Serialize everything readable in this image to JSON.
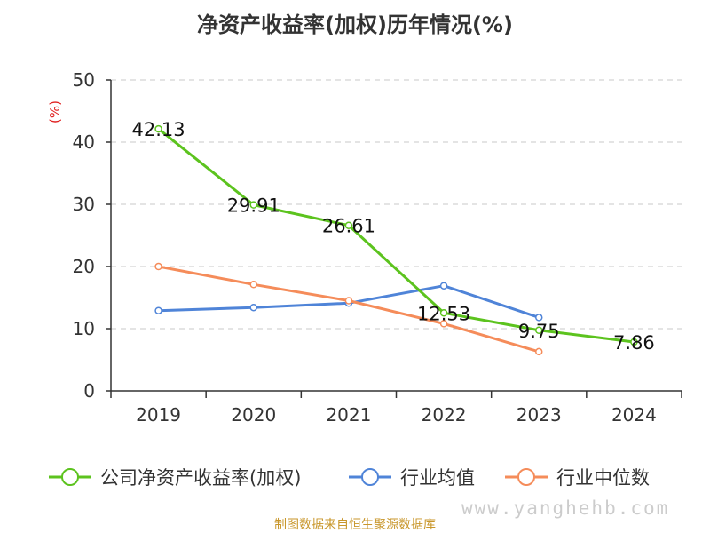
{
  "chart_data": {
    "type": "line",
    "title": "净资产收益率(加权)历年情况(%)",
    "ylabel": "(%)",
    "categories": [
      "2019",
      "2020",
      "2021",
      "2022",
      "2023",
      "2024"
    ],
    "ylim": [
      0,
      50
    ],
    "yticks": [
      "0",
      "10",
      "20",
      "30",
      "40",
      "50"
    ],
    "grid": true,
    "legend_position": "bottom",
    "series": [
      {
        "name": "公司净资产收益率(加权)",
        "color": "#5cc31e",
        "values": [
          42.13,
          29.91,
          26.61,
          12.53,
          9.75,
          7.86
        ],
        "labels": [
          "42.13",
          "29.91",
          "26.61",
          "12.53",
          "9.75",
          "7.86"
        ]
      },
      {
        "name": "行业均值",
        "color": "#4f84d8",
        "values": [
          12.9,
          13.4,
          14.1,
          16.9,
          11.8,
          null
        ]
      },
      {
        "name": "行业中位数",
        "color": "#f58c5a",
        "values": [
          20.0,
          17.1,
          14.5,
          10.8,
          6.3,
          null
        ]
      }
    ]
  },
  "source": "制图数据来自恒生聚源数据库",
  "watermark": "www.yanghehb.com"
}
